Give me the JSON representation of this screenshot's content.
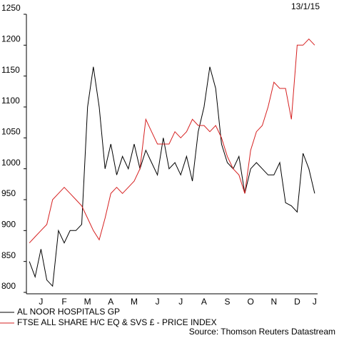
{
  "chart_data": {
    "type": "line",
    "date": "13/1/15",
    "source": "Source: Thomson Reuters Datastream",
    "categories": [
      null,
      null,
      "J",
      null,
      null,
      null,
      "F",
      null,
      null,
      null,
      "M",
      null,
      null,
      null,
      "A",
      null,
      null,
      null,
      "M",
      null,
      null,
      null,
      "J",
      null,
      null,
      null,
      "J",
      null,
      null,
      null,
      "A",
      null,
      null,
      null,
      "S",
      null,
      null,
      null,
      "O",
      null,
      null,
      null,
      "N",
      null,
      null,
      null,
      "D",
      null,
      null,
      "J"
    ],
    "series": [
      {
        "name": "AL NOOR HOSPITALS GP",
        "color": "#000000",
        "values": [
          850,
          825,
          870,
          820,
          810,
          900,
          880,
          900,
          900,
          910,
          1100,
          1165,
          1100,
          1000,
          1040,
          990,
          1020,
          1000,
          1040,
          1000,
          1030,
          1010,
          990,
          1050,
          1000,
          1010,
          990,
          1020,
          980,
          1060,
          1100,
          1165,
          1130,
          1040,
          1010,
          1000,
          1020,
          960,
          1000,
          1010,
          1000,
          990,
          990,
          1010,
          945,
          940,
          930,
          1025,
          1000,
          960
        ]
      },
      {
        "name": "FTSE ALL SHARE H/C EQ & SVS £ - PRICE INDEX",
        "color": "#d62020",
        "values": [
          880,
          890,
          900,
          910,
          950,
          960,
          970,
          960,
          950,
          940,
          920,
          900,
          885,
          920,
          960,
          970,
          960,
          970,
          980,
          1000,
          1080,
          1060,
          1040,
          1040,
          1040,
          1060,
          1050,
          1060,
          1080,
          1070,
          1070,
          1060,
          1070,
          1050,
          1020,
          1000,
          990,
          960,
          1030,
          1060,
          1070,
          1100,
          1140,
          1130,
          1130,
          1080,
          1200,
          1200,
          1210,
          1200
        ]
      }
    ],
    "ylim": [
      800,
      1250
    ],
    "yticks": [
      800,
      850,
      900,
      950,
      1000,
      1050,
      1100,
      1150,
      1200,
      1250
    ]
  }
}
